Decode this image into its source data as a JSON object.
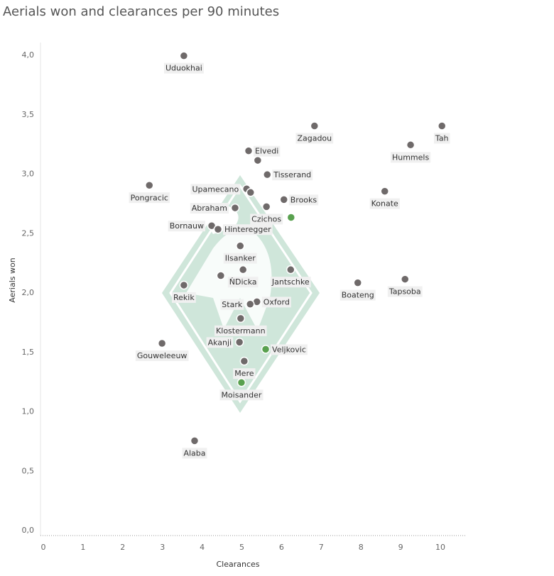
{
  "chart_data": {
    "type": "scatter",
    "title": "Aerials won and clearances per 90 minutes",
    "xlabel": "Clearances",
    "ylabel": "Aerials won",
    "xlim": [
      0,
      10.6
    ],
    "ylim": [
      0,
      4.1
    ],
    "xticks": [
      "0",
      "1",
      "2",
      "3",
      "4",
      "5",
      "6",
      "7",
      "8",
      "9",
      "10"
    ],
    "yticks": [
      "0,0",
      "0,5",
      "1,0",
      "1,5",
      "2,0",
      "2,5",
      "3,0",
      "3,5",
      "4,0"
    ],
    "grid": false,
    "colors": {
      "default": "#6f6a6a",
      "highlight": "#59a14f",
      "logo": "#cfe6da"
    },
    "points": [
      {
        "name": "Uduokhai",
        "x": 3.54,
        "y": 3.99,
        "pos": "below"
      },
      {
        "name": "Zagadou",
        "x": 6.83,
        "y": 3.4,
        "pos": "below"
      },
      {
        "name": "Tah",
        "x": 10.04,
        "y": 3.4,
        "pos": "below"
      },
      {
        "name": "Hummels",
        "x": 9.25,
        "y": 3.24,
        "pos": "below"
      },
      {
        "name": "Elvedi",
        "x": 5.17,
        "y": 3.19,
        "pos": "right"
      },
      {
        "name": "",
        "x": 5.4,
        "y": 3.11
      },
      {
        "name": "Tisserand",
        "x": 5.64,
        "y": 2.99,
        "pos": "right"
      },
      {
        "name": "Pongracic",
        "x": 2.67,
        "y": 2.9,
        "pos": "below"
      },
      {
        "name": "Upamecano",
        "x": 5.12,
        "y": 2.87,
        "pos": "left"
      },
      {
        "name": "",
        "x": 5.22,
        "y": 2.84
      },
      {
        "name": "Konate",
        "x": 8.6,
        "y": 2.85,
        "pos": "below"
      },
      {
        "name": "Brooks",
        "x": 6.06,
        "y": 2.78,
        "pos": "right"
      },
      {
        "name": "Abraham",
        "x": 4.83,
        "y": 2.71,
        "pos": "left"
      },
      {
        "name": "Czichos",
        "x": 5.62,
        "y": 2.72,
        "pos": "below"
      },
      {
        "name": "",
        "x": 6.24,
        "y": 2.63,
        "highlight": true
      },
      {
        "name": "Bornauw",
        "x": 4.24,
        "y": 2.56,
        "pos": "left"
      },
      {
        "name": "Hinteregger",
        "x": 4.4,
        "y": 2.53,
        "pos": "right"
      },
      {
        "name": "Ilsanker",
        "x": 4.96,
        "y": 2.39,
        "pos": "below"
      },
      {
        "name": "ŃDicka",
        "x": 5.03,
        "y": 2.19,
        "pos": "below"
      },
      {
        "name": "",
        "x": 4.47,
        "y": 2.14
      },
      {
        "name": "Jantschke",
        "x": 6.23,
        "y": 2.19,
        "pos": "below"
      },
      {
        "name": "Boateng",
        "x": 7.92,
        "y": 2.08,
        "pos": "below"
      },
      {
        "name": "Tapsoba",
        "x": 9.11,
        "y": 2.11,
        "pos": "below"
      },
      {
        "name": "Rekik",
        "x": 3.54,
        "y": 2.06,
        "pos": "below"
      },
      {
        "name": "Oxford",
        "x": 5.38,
        "y": 1.92,
        "pos": "right"
      },
      {
        "name": "Stark",
        "x": 5.21,
        "y": 1.9,
        "pos": "left"
      },
      {
        "name": "Klostermann",
        "x": 4.97,
        "y": 1.78,
        "pos": "below"
      },
      {
        "name": "Akanji",
        "x": 4.94,
        "y": 1.58,
        "pos": "left"
      },
      {
        "name": "Veljkovic",
        "x": 5.6,
        "y": 1.52,
        "pos": "right",
        "highlight": true
      },
      {
        "name": "Gouweleeuw",
        "x": 2.99,
        "y": 1.57,
        "pos": "below"
      },
      {
        "name": "Mere",
        "x": 5.06,
        "y": 1.42,
        "pos": "below"
      },
      {
        "name": "Moisander",
        "x": 4.99,
        "y": 1.24,
        "pos": "below",
        "highlight": true
      },
      {
        "name": "Alaba",
        "x": 3.81,
        "y": 0.75,
        "pos": "below"
      }
    ]
  }
}
